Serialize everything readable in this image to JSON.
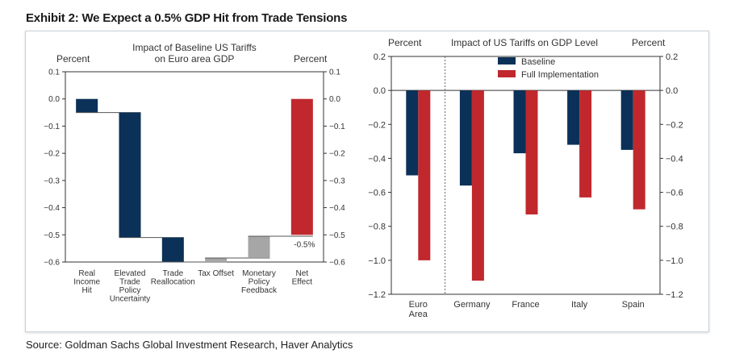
{
  "exhibit_title": "Exhibit 2: We Expect a 0.5% GDP Hit from Trade Tensions",
  "source": "Source: Goldman Sachs Global Investment Research, Haver Analytics",
  "colors": {
    "navy": "#0b3158",
    "red": "#c0282d",
    "gray": "#a6a6a6"
  },
  "chart_data": [
    {
      "type": "waterfall",
      "title_lines": [
        "Impact of Baseline US Tariffs",
        "on Euro area GDP"
      ],
      "ylabel_left": "Percent",
      "ylabel_right": "Percent",
      "ylim": [
        -0.6,
        0.1
      ],
      "ticks": [
        0.1,
        0.0,
        -0.1,
        -0.2,
        -0.3,
        -0.4,
        -0.5,
        -0.6
      ],
      "tick_labels": [
        "0.1",
        "0.0",
        "−0.1",
        "−0.2",
        "−0.3",
        "−0.4",
        "−0.5",
        "−0.6"
      ],
      "categories": [
        [
          "Real",
          "Income",
          "Hit"
        ],
        [
          "Elevated",
          "Trade",
          "Policy",
          "Uncertainty"
        ],
        [
          "Trade",
          "Reallocation"
        ],
        [
          "Tax Offset"
        ],
        [
          "Monetary",
          "Policy",
          "Feedback"
        ],
        [
          "Net",
          "Effect"
        ]
      ],
      "steps": [
        {
          "start": 0.0,
          "end": -0.05,
          "color": "navy"
        },
        {
          "start": -0.05,
          "end": -0.51,
          "color": "navy"
        },
        {
          "start": -0.51,
          "end": -0.6,
          "color": "navy"
        },
        {
          "start": -0.6,
          "end": -0.585,
          "color": "gray"
        },
        {
          "start": -0.585,
          "end": -0.505,
          "color": "gray"
        },
        {
          "start": 0.0,
          "end": -0.5,
          "color": "red"
        }
      ],
      "annotation": "-0.5%"
    },
    {
      "type": "bar",
      "title": "Impact of US Tariffs on GDP Level",
      "ylabel_left": "Percent",
      "ylabel_right": "Percent",
      "ylim": [
        -1.2,
        0.2
      ],
      "ticks": [
        0.2,
        0.0,
        -0.2,
        -0.4,
        -0.6,
        -0.8,
        -1.0,
        -1.2
      ],
      "tick_labels": [
        "0.2",
        "0.0",
        "−0.2",
        "−0.4",
        "−0.6",
        "−0.8",
        "−1.0",
        "−1.2"
      ],
      "categories": [
        [
          "Euro",
          "Area"
        ],
        [
          "Germany"
        ],
        [
          "France"
        ],
        [
          "Italy"
        ],
        [
          "Spain"
        ]
      ],
      "series": [
        {
          "name": "Baseline",
          "color": "navy",
          "values": [
            -0.5,
            -0.56,
            -0.37,
            -0.32,
            -0.35
          ]
        },
        {
          "name": "Full Implementation",
          "color": "red",
          "values": [
            -1.0,
            -1.12,
            -0.73,
            -0.63,
            -0.7
          ]
        }
      ],
      "legend_position": "top-center"
    }
  ]
}
